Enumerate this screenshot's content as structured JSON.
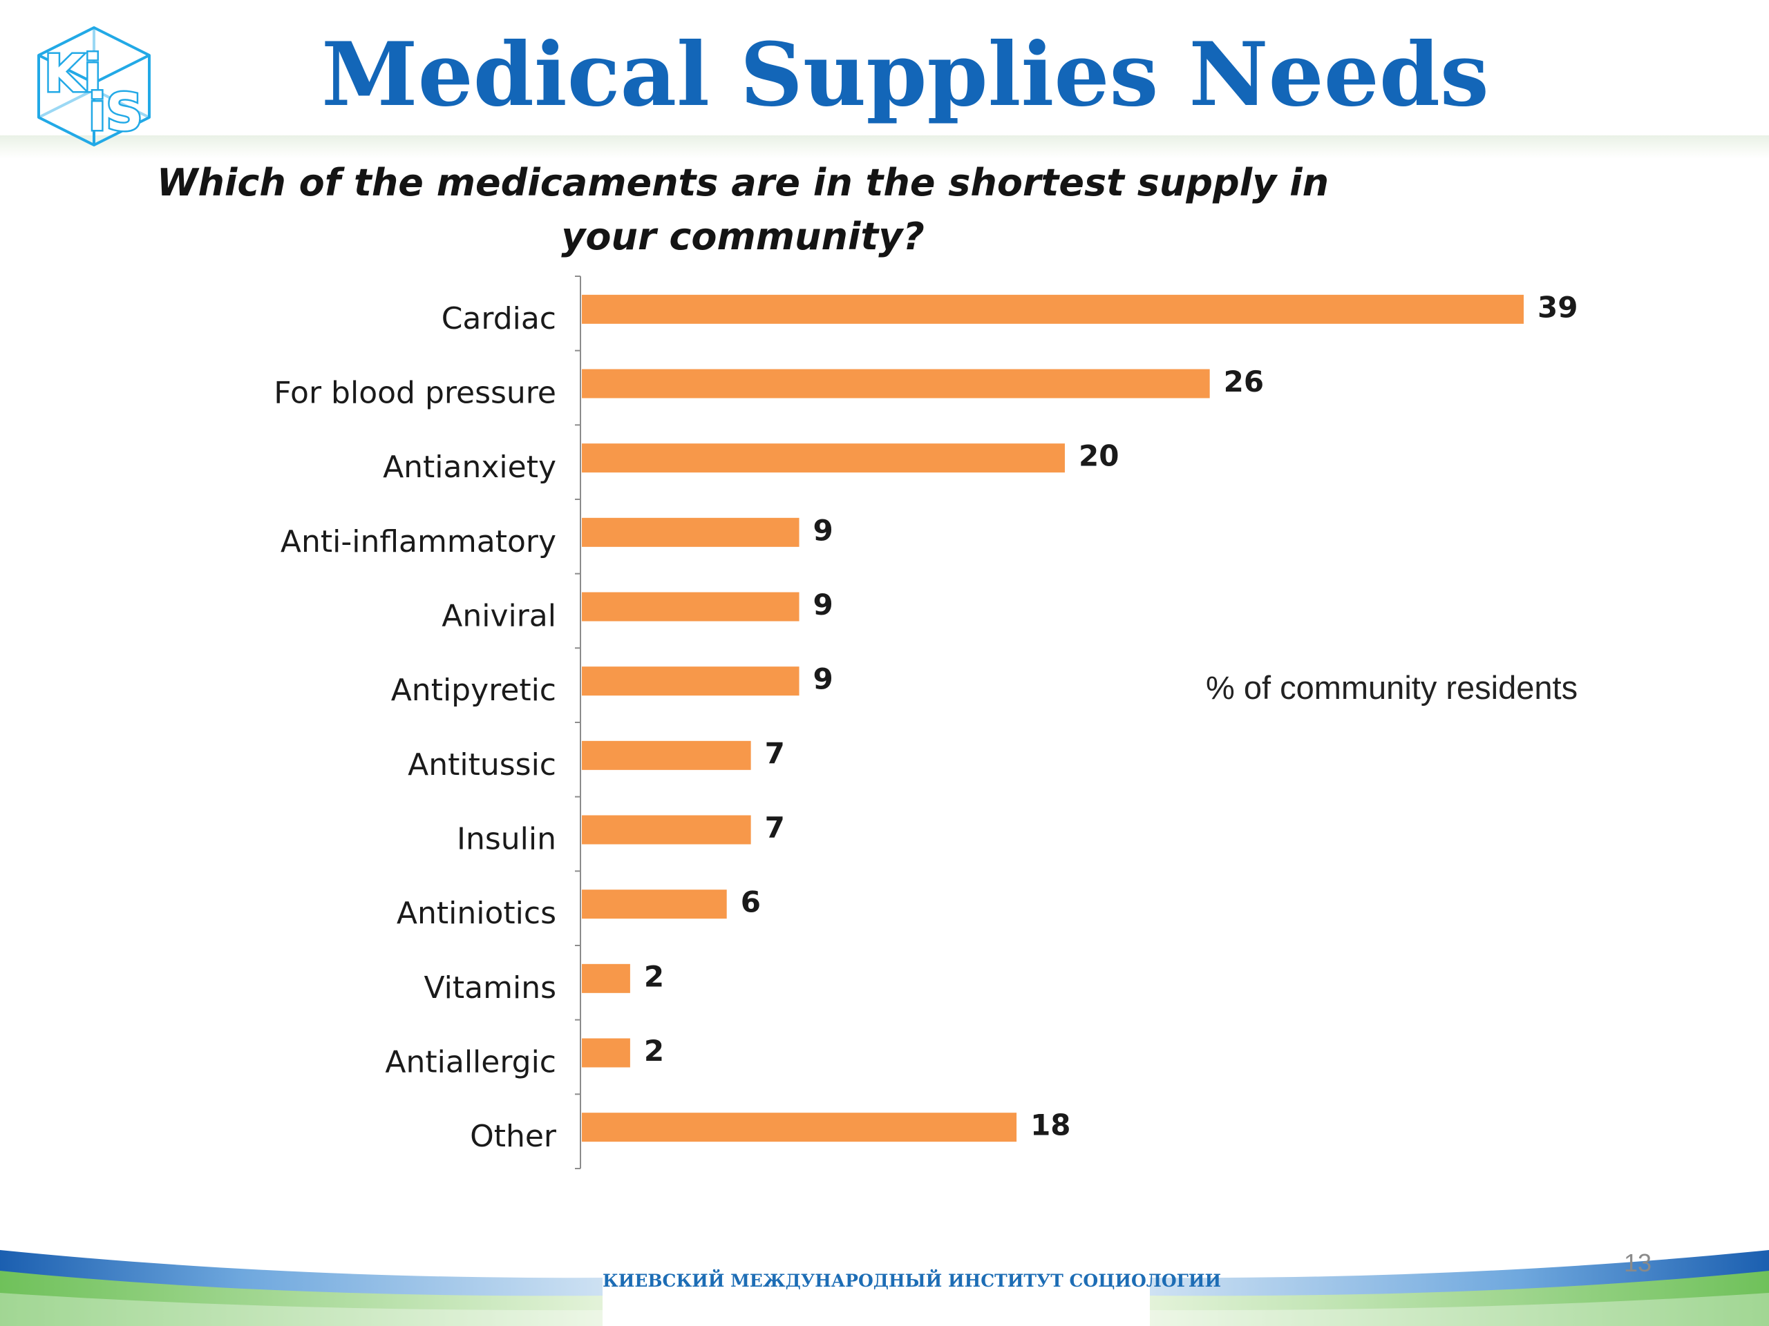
{
  "title": "Medical Supplies Needs",
  "question": "Which of the medicaments are in the shortest supply in your community?",
  "unit_note": "% of community residents",
  "footer": {
    "institute": "КИЕВСКИЙ МЕЖДУНАРОДНЫЙ ИНСТИТУТ СОЦИОЛОГИИ",
    "page_number": "13"
  },
  "logo": {
    "text_top": "Ki",
    "text_bottom": "iS",
    "icon": "kiis-cube-logo-icon"
  },
  "colors": {
    "bar": "#f7984a",
    "title": "#1366b8",
    "footer_text": "#1d6db5",
    "logo": "#22a9e6"
  },
  "chart_data": {
    "type": "bar",
    "orientation": "horizontal",
    "categories": [
      "Cardiac",
      "For blood pressure",
      "Antianxiety",
      "Anti-inflammatory",
      "Aniviral",
      "Antipyretic",
      "Antitussic",
      "Insulin",
      "Antiniotics",
      "Vitamins",
      "Antiallergic",
      "Other"
    ],
    "values": [
      39,
      26,
      20,
      9,
      9,
      9,
      7,
      7,
      6,
      2,
      2,
      18
    ],
    "title": "Which of the medicaments are in the shortest supply in your community?",
    "xlabel": "",
    "ylabel": "",
    "xlim": [
      0,
      40
    ],
    "grid": false,
    "data_labels": true
  }
}
